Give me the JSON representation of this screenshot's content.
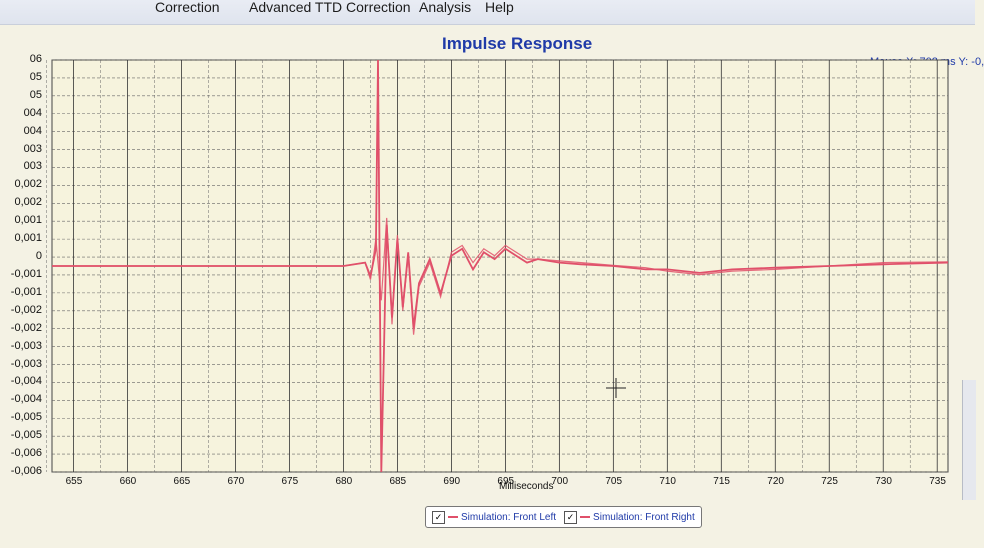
{
  "menu": {
    "items": [
      {
        "label": "Correction"
      },
      {
        "label": "Advanced TTD Correction"
      },
      {
        "label": "Analysis"
      },
      {
        "label": "Help"
      }
    ]
  },
  "mouse_readout": "Mouse X: 702 ms  Y: -0,",
  "colors": {
    "series": "#e0506a",
    "title": "#1f3aa8",
    "grid": "#666666"
  },
  "legend": {
    "check_glyph": "✓",
    "entries": [
      {
        "label": "Simulation: Front Left"
      },
      {
        "label": "Simulation: Front Right"
      }
    ]
  },
  "chart_data": {
    "type": "line",
    "title": "Impulse Response",
    "xlabel": "Milliseconds",
    "ylabel": "",
    "grid": true,
    "legend_position": "bottom-center",
    "xlim": [
      653,
      736
    ],
    "ylim": [
      -0.006,
      0.006
    ],
    "x_ticks": [
      "655",
      "660",
      "665",
      "670",
      "675",
      "680",
      "685",
      "690",
      "695",
      "700",
      "705",
      "710",
      "715",
      "720",
      "725",
      "730",
      "735"
    ],
    "y_ticks": [
      "06",
      "05",
      "05",
      "004",
      "004",
      "003",
      "003",
      "0,002",
      "0,002",
      "0,001",
      "0,001",
      "0",
      "-0,001",
      "-0,001",
      "-0,002",
      "-0,002",
      "-0,003",
      "-0,003",
      "-0,004",
      "-0,004",
      "-0,005",
      "-0,005",
      "-0,006",
      "-0,006"
    ],
    "series": [
      {
        "name": "Simulation: Front Left",
        "x": [
          653,
          680,
          682,
          682.5,
          683,
          683.2,
          683.5,
          684,
          684.5,
          685,
          685.5,
          686,
          686.5,
          687,
          688,
          689,
          690,
          691,
          692,
          693,
          694,
          695,
          696,
          697,
          698,
          700,
          702,
          705,
          708,
          710,
          713,
          716,
          720,
          725,
          730,
          736
        ],
        "y": [
          0,
          0,
          0.0001,
          -0.0003,
          0.0005,
          0.006,
          -0.006,
          0.0012,
          -0.0015,
          0.0008,
          -0.0012,
          0.0004,
          -0.0018,
          -0.0005,
          0.0002,
          -0.0008,
          0.0003,
          0.0005,
          -0.0001,
          0.0004,
          0.0002,
          0.0005,
          0.0003,
          0.0001,
          0.0002,
          0.0001,
          5e-05,
          0,
          -0.0001,
          -0.0001,
          -0.0002,
          -0.0001,
          -5e-05,
          0,
          5e-05,
          0.0001
        ]
      },
      {
        "name": "Simulation: Front Right",
        "x": [
          653,
          680,
          682,
          682.5,
          683,
          683.5,
          684,
          684.5,
          685,
          685.5,
          686,
          686.5,
          687,
          688,
          689,
          690,
          691,
          692,
          693,
          694,
          695,
          696,
          697,
          698,
          700,
          702,
          705,
          708,
          710,
          713,
          716,
          720,
          725,
          730,
          736
        ],
        "y": [
          0,
          0,
          0.0001,
          -0.0004,
          0.0008,
          -0.001,
          0.0014,
          -0.0017,
          0.0009,
          -0.0013,
          0.0003,
          -0.002,
          -0.0006,
          0.0001,
          -0.0009,
          0.0004,
          0.0006,
          0.0001,
          0.0005,
          0.0003,
          0.0006,
          0.0004,
          0.0002,
          0.0002,
          0.00015,
          0.0001,
          2e-05,
          -5e-05,
          -0.00015,
          -0.00025,
          -0.00015,
          -0.0001,
          0,
          0.0001,
          0.00012
        ]
      }
    ]
  }
}
